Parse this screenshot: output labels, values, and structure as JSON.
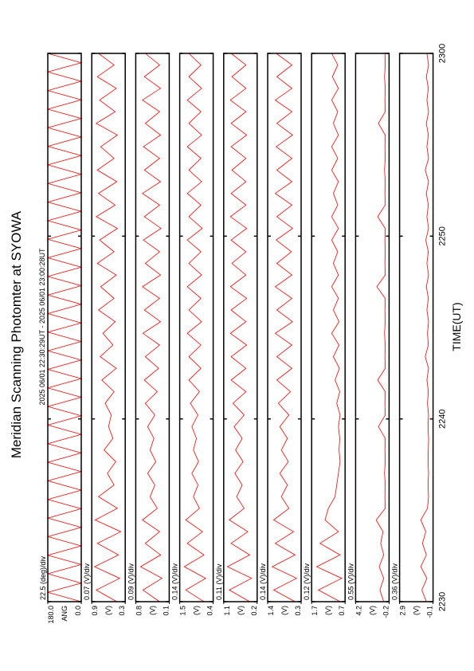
{
  "chart_data": {
    "type": "line",
    "title": "Meridian Scanning Photomter at SYOWA",
    "subtitle": "2025 06/01 22:30:29UT - 2025 06/01 23:00:28UT",
    "xlabel": "TIME(UT)",
    "xlim": [
      "2230",
      "2300"
    ],
    "xticks": [
      "2230",
      "2240",
      "2250",
      "2300"
    ],
    "panels": [
      {
        "scale_label": "22.5 (deg)/div",
        "ylabel": "ANG",
        "color": "#ff0000",
        "ylim": [
          0,
          180
        ],
        "yticks": [
          {
            "value": 0,
            "label": "0.0"
          },
          {
            "value": 180,
            "label": "180.0"
          }
        ],
        "values": [
          0,
          180,
          0,
          180,
          0,
          180,
          0,
          180,
          0,
          180,
          0,
          180,
          0,
          180,
          0,
          180,
          0,
          180,
          0,
          180,
          0,
          180,
          0,
          180,
          0,
          180,
          0,
          180,
          0,
          180,
          0,
          180,
          0,
          180,
          0,
          180,
          0,
          180,
          0,
          180,
          0,
          180,
          0,
          180,
          0,
          180,
          0,
          180,
          0,
          180,
          0,
          180,
          0,
          180,
          0,
          180,
          0,
          180,
          0,
          180
        ]
      },
      {
        "scale_label": "0.07 (V)/div",
        "ylabel": "(V)",
        "color": "#ff0000",
        "ylim": [
          0.3,
          0.9
        ],
        "yticks": [
          0.3,
          0.9
        ],
        "values": [
          0.45,
          0.82,
          0.4,
          0.85,
          0.42,
          0.8,
          0.38,
          0.84,
          0.44,
          0.78,
          0.5,
          0.62,
          0.47,
          0.68,
          0.52,
          0.6,
          0.55,
          0.66,
          0.5,
          0.72,
          0.46,
          0.75,
          0.52,
          0.7,
          0.48,
          0.78,
          0.5,
          0.74,
          0.46,
          0.8,
          0.5,
          0.76,
          0.44,
          0.82,
          0.48,
          0.78,
          0.45,
          0.8,
          0.5,
          0.74,
          0.44,
          0.82,
          0.48,
          0.76,
          0.46,
          0.8,
          0.5,
          0.78
        ]
      },
      {
        "scale_label": "0.09 (V)/div",
        "ylabel": "(V)",
        "color": "#ff0000",
        "ylim": [
          0.1,
          0.8
        ],
        "yticks": [
          0.1,
          0.8
        ],
        "values": [
          0.3,
          0.65,
          0.25,
          0.7,
          0.28,
          0.6,
          0.3,
          0.66,
          0.35,
          0.5,
          0.4,
          0.55,
          0.38,
          0.5,
          0.42,
          0.55,
          0.4,
          0.6,
          0.35,
          0.62,
          0.32,
          0.6,
          0.3,
          0.65,
          0.28,
          0.62,
          0.3,
          0.66,
          0.28,
          0.6,
          0.3,
          0.64,
          0.27,
          0.62,
          0.3,
          0.66,
          0.28,
          0.62,
          0.3,
          0.64,
          0.28,
          0.6,
          0.3,
          0.66,
          0.28,
          0.62,
          0.3,
          0.6
        ]
      },
      {
        "scale_label": "0.14 (V)/div",
        "ylabel": "(V)",
        "color": "#ff0000",
        "ylim": [
          0.4,
          1.5
        ],
        "yticks": [
          0.4,
          1.5
        ],
        "values": [
          0.7,
          1.3,
          0.65,
          1.35,
          0.7,
          1.25,
          0.75,
          1.3,
          0.85,
          1.05,
          0.9,
          1.1,
          0.88,
          1.05,
          0.95,
          1.1,
          0.9,
          1.15,
          0.85,
          1.2,
          0.8,
          1.2,
          0.8,
          1.25,
          0.78,
          1.2,
          0.8,
          1.25,
          0.78,
          1.2,
          0.8,
          1.25,
          0.76,
          1.2,
          0.8,
          1.25,
          0.78,
          1.2,
          0.8,
          1.25,
          0.78,
          1.2,
          0.8,
          1.25,
          0.78,
          1.2,
          0.8,
          1.2
        ]
      },
      {
        "scale_label": "0.11 (V)/div",
        "ylabel": "(V)",
        "color": "#ff0000",
        "ylim": [
          0.2,
          1.1
        ],
        "yticks": [
          0.2,
          1.1
        ],
        "values": [
          0.4,
          0.95,
          0.35,
          1.0,
          0.4,
          0.9,
          0.45,
          0.95,
          0.55,
          0.75,
          0.6,
          0.8,
          0.58,
          0.78,
          0.6,
          0.82,
          0.55,
          0.85,
          0.5,
          0.9,
          0.5,
          0.9,
          0.48,
          0.92,
          0.5,
          0.9,
          0.48,
          0.92,
          0.5,
          0.88,
          0.5,
          0.9,
          0.48,
          0.92,
          0.5,
          0.9,
          0.5,
          0.88,
          0.5,
          0.9,
          0.48,
          0.9,
          0.5,
          0.92,
          0.5,
          0.88,
          0.5,
          0.9
        ]
      },
      {
        "scale_label": "0.14 (V)/div",
        "ylabel": "(V)",
        "color": "#ff0000",
        "ylim": [
          0.3,
          1.4
        ],
        "yticks": [
          0.3,
          1.4
        ],
        "values": [
          0.5,
          1.2,
          0.45,
          1.25,
          0.5,
          1.15,
          0.55,
          1.2,
          0.7,
          0.95,
          0.75,
          1.0,
          0.72,
          0.95,
          0.75,
          1.0,
          0.7,
          1.05,
          0.65,
          1.1,
          0.6,
          1.1,
          0.6,
          1.15,
          0.58,
          1.1,
          0.6,
          1.15,
          0.6,
          1.1,
          0.62,
          1.12,
          0.58,
          1.1,
          0.6,
          1.15,
          0.6,
          1.1,
          0.6,
          1.12,
          0.58,
          1.1,
          0.6,
          1.15,
          0.6,
          1.1,
          0.6,
          1.12
        ]
      },
      {
        "scale_label": "0.12 (V)/div",
        "ylabel": "(V)",
        "color": "#ff0000",
        "ylim": [
          0.7,
          1.7
        ],
        "yticks": [
          0.7,
          1.7
        ],
        "values": [
          0.85,
          1.5,
          0.8,
          1.55,
          0.85,
          1.45,
          0.9,
          1.3,
          1.2,
          1.0,
          0.95,
          0.9,
          0.85,
          0.88,
          0.86,
          0.9,
          0.85,
          0.95,
          0.86,
          1.0,
          0.87,
          1.05,
          0.88,
          1.1,
          0.88,
          1.05,
          0.9,
          1.1,
          0.9,
          1.05,
          0.92,
          1.1,
          0.9,
          1.1,
          0.92,
          1.05,
          0.9,
          1.1,
          0.92,
          1.1,
          0.9,
          1.05,
          0.92,
          1.1,
          0.9,
          1.08,
          0.92,
          1.1
        ]
      },
      {
        "scale_label": "0.55 (V)/div",
        "ylabel": "(V)",
        "color": "#ff0000",
        "ylim": [
          -0.2,
          4.2
        ],
        "yticks": [
          -0.2,
          4.2
        ],
        "values": [
          0.5,
          1.0,
          0.5,
          1.1,
          0.5,
          0.9,
          0.6,
          1.5,
          0.3,
          0.35,
          0.3,
          0.4,
          0.3,
          0.35,
          0.3,
          1.2,
          0.3,
          0.35,
          0.3,
          1.3,
          0.3,
          0.35,
          0.3,
          0.4,
          0.3,
          0.35,
          0.3,
          1.4,
          0.3,
          0.35,
          0.3,
          0.35,
          0.3,
          1.3,
          0.3,
          0.35,
          0.3,
          0.4,
          0.3,
          0.35,
          0.3,
          1.2,
          0.3,
          0.35,
          0.3,
          0.4,
          0.3,
          0.35
        ]
      },
      {
        "scale_label": "0.36 (V)/div",
        "ylabel": "(V)",
        "color": "#ff0000",
        "ylim": [
          -0.1,
          2.9
        ],
        "yticks": [
          -0.1,
          2.9
        ],
        "values": [
          0.5,
          0.9,
          0.45,
          1.0,
          0.5,
          0.85,
          0.55,
          1.0,
          0.4,
          0.3,
          0.35,
          0.3,
          0.35,
          0.32,
          0.3,
          0.35,
          0.3,
          0.4,
          0.32,
          0.45,
          0.3,
          0.6,
          0.32,
          0.4,
          0.3,
          0.45,
          0.32,
          0.5,
          0.3,
          0.45,
          0.32,
          0.55,
          0.3,
          0.45,
          0.32,
          0.5,
          0.3,
          0.6,
          0.3,
          0.45,
          0.32,
          0.5,
          0.3,
          0.45,
          0.32,
          0.5,
          0.3,
          0.45
        ]
      }
    ]
  }
}
